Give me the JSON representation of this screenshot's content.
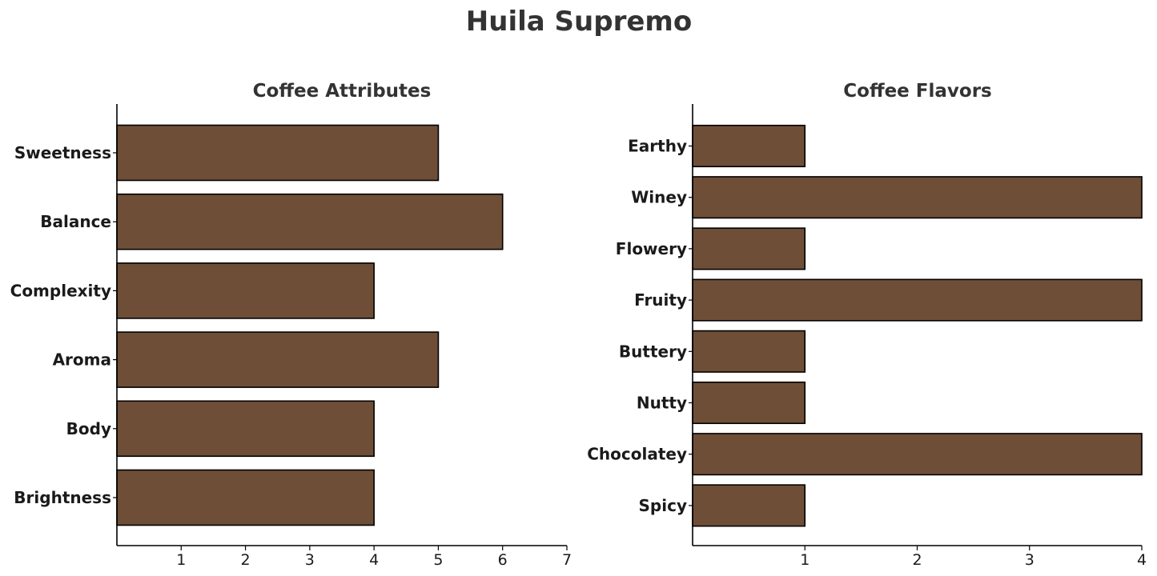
{
  "title": "Huila Supremo",
  "colors": {
    "bar_fill": "#6f4e37",
    "bar_edge": "#000000",
    "text": "#333333"
  },
  "chart_data": [
    {
      "type": "bar",
      "orientation": "horizontal",
      "title": "Coffee Attributes",
      "categories": [
        "Sweetness",
        "Balance",
        "Complexity",
        "Aroma",
        "Body",
        "Brightness"
      ],
      "values": [
        5,
        6,
        4,
        5,
        4,
        4
      ],
      "xlim": [
        0,
        7
      ],
      "xticks": [
        "1",
        "2",
        "3",
        "4",
        "5",
        "6",
        "7"
      ],
      "xlabel": "",
      "ylabel": "",
      "grid": false
    },
    {
      "type": "bar",
      "orientation": "horizontal",
      "title": "Coffee Flavors",
      "categories": [
        "Earthy",
        "Winey",
        "Flowery",
        "Fruity",
        "Buttery",
        "Nutty",
        "Chocolatey",
        "Spicy"
      ],
      "values": [
        1,
        4,
        1,
        4,
        1,
        1,
        4,
        1
      ],
      "xlim": [
        0,
        4
      ],
      "xticks": [
        "1",
        "2",
        "3",
        "4"
      ],
      "xlabel": "",
      "ylabel": "",
      "grid": false
    }
  ]
}
